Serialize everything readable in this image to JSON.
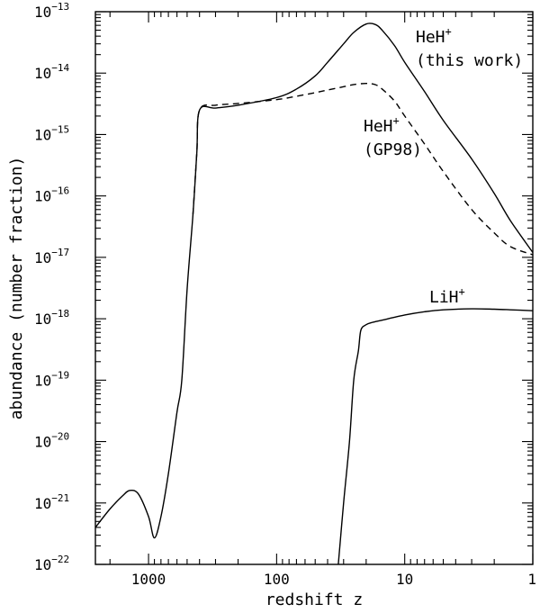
{
  "chart_data": {
    "type": "line",
    "title": "",
    "xlabel": "redshift z",
    "ylabel": "abundance (number fraction)",
    "xscale": "log",
    "yscale": "log",
    "x_reversed": true,
    "xlim": [
      2600,
      1
    ],
    "ylim": [
      1e-22,
      1e-13
    ],
    "x_ticks": [
      {
        "value": 1000,
        "label": "1000"
      },
      {
        "value": 100,
        "label": "100"
      },
      {
        "value": 10,
        "label": "10"
      },
      {
        "value": 1,
        "label": "1"
      }
    ],
    "y_ticks": [
      {
        "value": 1e-13,
        "base": "10",
        "exp": "−13"
      },
      {
        "value": 1e-14,
        "base": "10",
        "exp": "−14"
      },
      {
        "value": 1e-15,
        "base": "10",
        "exp": "−15"
      },
      {
        "value": 1e-16,
        "base": "10",
        "exp": "−16"
      },
      {
        "value": 1e-17,
        "base": "10",
        "exp": "−17"
      },
      {
        "value": 1e-18,
        "base": "10",
        "exp": "−18"
      },
      {
        "value": 1e-19,
        "base": "10",
        "exp": "−19"
      },
      {
        "value": 1e-20,
        "base": "10",
        "exp": "−20"
      },
      {
        "value": 1e-21,
        "base": "10",
        "exp": "−21"
      },
      {
        "value": 1e-22,
        "base": "10",
        "exp": "−22"
      }
    ],
    "grid": false,
    "series": [
      {
        "name": "HeH+ (this work)",
        "style": "solid",
        "x": [
          2600,
          2000,
          1600,
          1400,
          1200,
          1000,
          900,
          800,
          700,
          600,
          550,
          500,
          450,
          420,
          400,
          300,
          200,
          100,
          70,
          50,
          40,
          30,
          25,
          20,
          17,
          15,
          12,
          10,
          7,
          5,
          3,
          2,
          1.5,
          1
        ],
        "y": [
          4e-22,
          8e-22,
          1.3e-21,
          1.6e-21,
          1.4e-21,
          6e-22,
          2.7e-22,
          6e-22,
          3e-21,
          3e-20,
          1e-19,
          3e-18,
          5e-17,
          5e-16,
          2.5e-15,
          2.7e-15,
          3e-15,
          4e-15,
          5.5e-15,
          9e-15,
          1.5e-14,
          3e-14,
          4.6e-14,
          6.3e-14,
          6.2e-14,
          5e-14,
          2.8e-14,
          1.5e-14,
          5e-15,
          1.7e-15,
          4e-16,
          1.1e-16,
          4e-17,
          1.2e-17
        ]
      },
      {
        "name": "HeH+ (GP98)",
        "style": "dashed",
        "x": [
          450,
          420,
          400,
          300,
          200,
          100,
          70,
          50,
          40,
          30,
          25,
          20,
          17,
          15,
          12,
          10,
          7,
          5,
          3,
          2,
          1.5,
          1
        ],
        "y": [
          5e-17,
          5e-16,
          2.5e-15,
          3e-15,
          3.2e-15,
          3.7e-15,
          4.2e-15,
          4.8e-15,
          5.3e-15,
          6e-15,
          6.5e-15,
          6.8e-15,
          6.5e-15,
          5.5e-15,
          3.5e-15,
          2e-15,
          7e-16,
          2.5e-16,
          6e-17,
          2.5e-17,
          1.5e-17,
          1.1e-17
        ]
      },
      {
        "name": "LiH+",
        "style": "solid",
        "x": [
          33,
          30,
          27,
          25,
          23,
          22,
          20,
          18,
          15,
          10,
          7,
          5,
          3,
          2,
          1.5,
          1
        ],
        "y": [
          1e-22,
          1e-21,
          1e-20,
          1e-19,
          3e-19,
          6.5e-19,
          8e-19,
          8.7e-19,
          9.5e-19,
          1.15e-18,
          1.3e-18,
          1.4e-18,
          1.45e-18,
          1.43e-18,
          1.4e-18,
          1.35e-18
        ]
      }
    ],
    "annotations": [
      {
        "text": "HeH",
        "sup": "+",
        "line2": "(this work)",
        "series": 0
      },
      {
        "text": "HeH",
        "sup": "+",
        "line2": "(GP98)",
        "series": 1
      },
      {
        "text": "LiH",
        "sup": "+",
        "line2": "",
        "series": 2
      }
    ]
  }
}
